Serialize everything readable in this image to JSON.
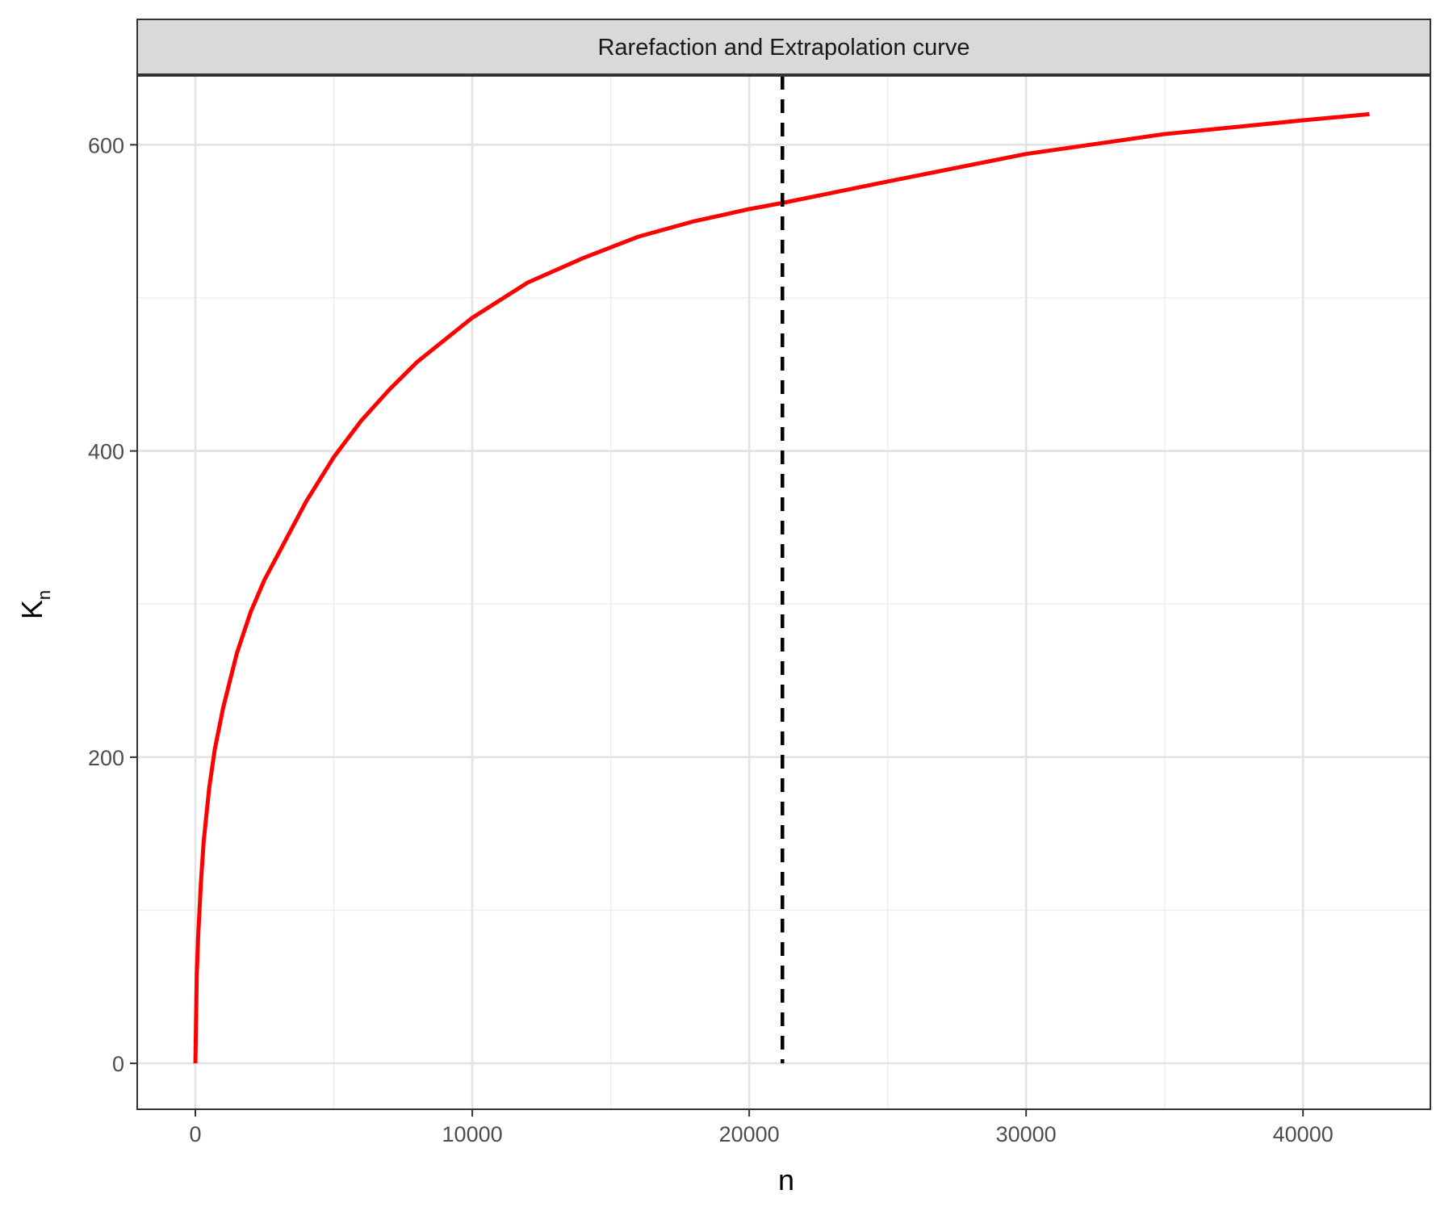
{
  "chart_data": {
    "type": "line",
    "title": "Rarefaction and Extrapolation curve",
    "xlabel": "n",
    "ylabel": {
      "main": "K",
      "subscript": "n"
    },
    "xlim": [
      -2100,
      44600
    ],
    "ylim": [
      -30,
      645
    ],
    "x_ticks": [
      0,
      10000,
      20000,
      30000,
      40000
    ],
    "x_tick_labels": [
      "0",
      "10000",
      "20000",
      "30000",
      "40000"
    ],
    "y_ticks": [
      0,
      200,
      400,
      600
    ],
    "y_tick_labels": [
      "0",
      "200",
      "400",
      "600"
    ],
    "x_minor_ticks": [
      5000,
      15000,
      25000,
      35000
    ],
    "y_minor_ticks": [
      100,
      300,
      500
    ],
    "grid": true,
    "legend": "none",
    "reference_line": {
      "orientation": "vertical",
      "x": 21200,
      "style": "dashed",
      "color": "#000000"
    },
    "series": [
      {
        "color": "#ff0000",
        "x": [
          0,
          50,
          100,
          200,
          300,
          500,
          700,
          1000,
          1500,
          2000,
          2500,
          3000,
          4000,
          5000,
          6000,
          7000,
          8000,
          10000,
          12000,
          14000,
          16000,
          18000,
          20000,
          21200,
          25000,
          30000,
          35000,
          40000,
          42400
        ],
        "y": [
          0,
          58,
          83,
          118,
          145,
          180,
          205,
          232,
          268,
          295,
          316,
          333,
          367,
          396,
          420,
          440,
          458,
          487,
          510,
          526,
          540,
          550,
          558,
          562,
          576,
          594,
          607,
          616,
          620
        ]
      }
    ]
  }
}
